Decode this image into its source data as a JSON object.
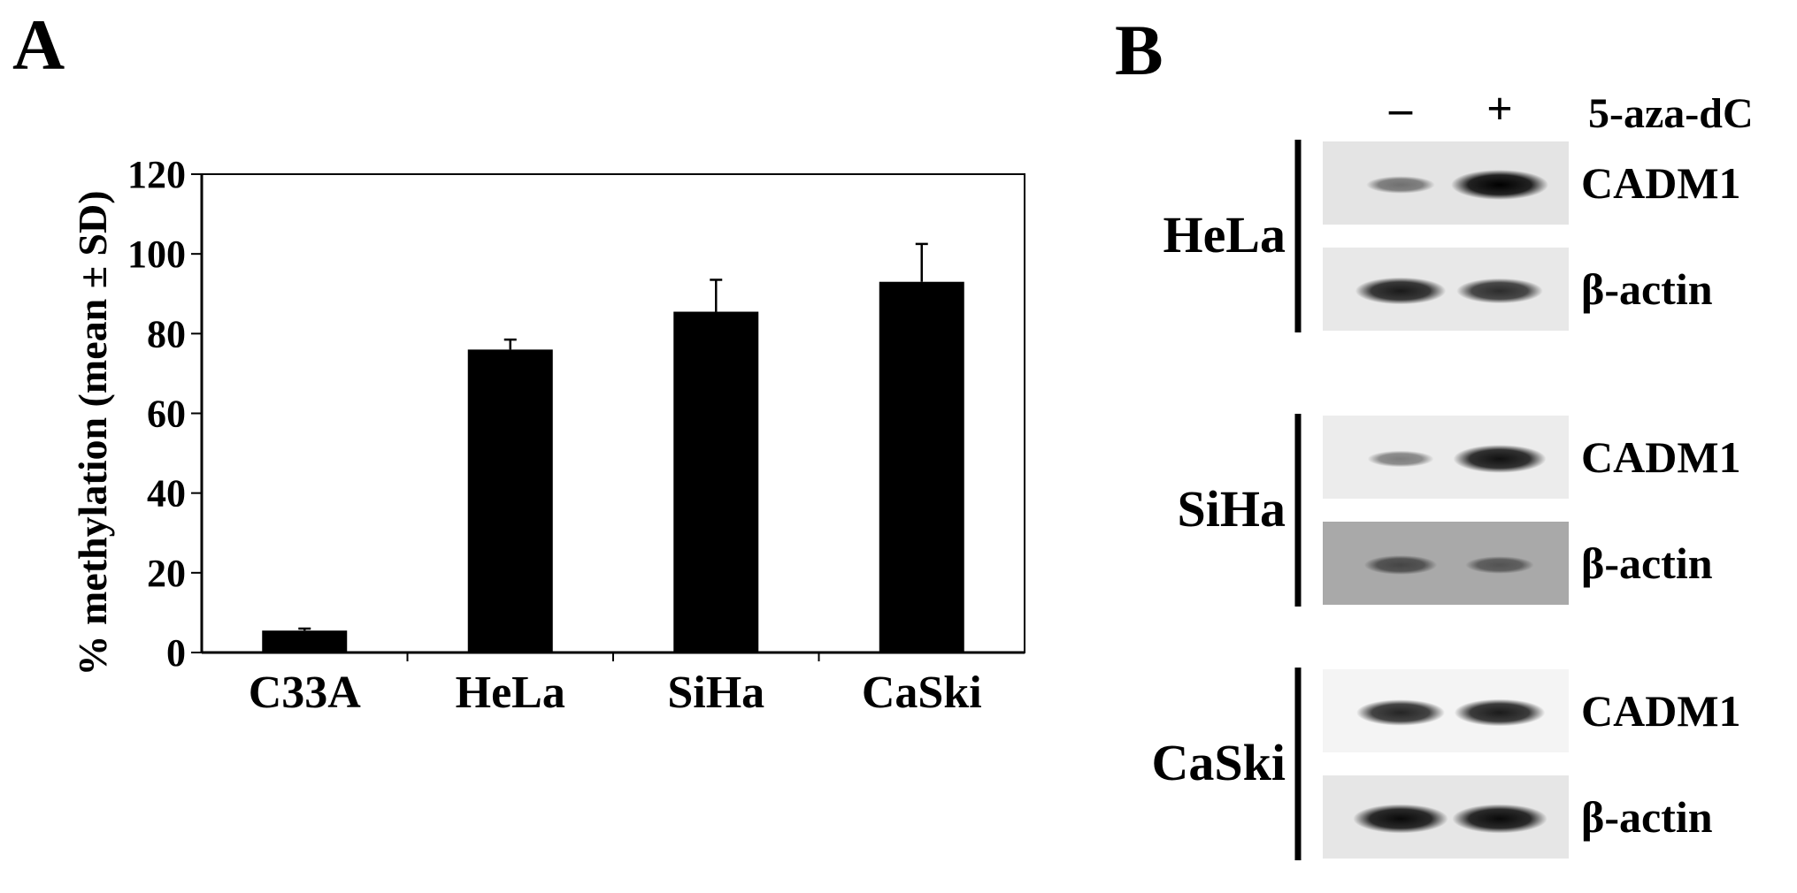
{
  "panel_a": {
    "letter": "A",
    "chart_data": {
      "type": "bar",
      "title": "",
      "xlabel": "",
      "ylabel": "% methylation (mean ± SD)",
      "categories": [
        "C33A",
        "HeLa",
        "SiHa",
        "CaSki"
      ],
      "values": [
        5.5,
        76,
        85.5,
        93
      ],
      "errors": [
        0.5,
        2.5,
        8,
        9.5
      ],
      "ylim": [
        0,
        120
      ],
      "yticks": [
        "0",
        "20",
        "40",
        "60",
        "80",
        "100",
        "120"
      ],
      "grid": false,
      "bar_color": "#000000"
    }
  },
  "panel_b": {
    "letter": "B",
    "treatment_label": "5-aza-dC",
    "lane_labels": [
      "–",
      "+"
    ],
    "groups": [
      {
        "cell_line": "HeLa",
        "rows": [
          {
            "protein": "CADM1",
            "bg": "#e4e4e4",
            "bands": [
              0.35,
              1.0
            ]
          },
          {
            "protein": "β-actin",
            "bg": "#e8e8e8",
            "bands": [
              0.85,
              0.75
            ]
          }
        ]
      },
      {
        "cell_line": "SiHa",
        "rows": [
          {
            "protein": "CADM1",
            "bg": "#ececec",
            "bands": [
              0.3,
              0.9
            ]
          },
          {
            "protein": "β-actin",
            "bg": "#a9a9a9",
            "bands": [
              0.45,
              0.35
            ]
          }
        ]
      },
      {
        "cell_line": "CaSki",
        "rows": [
          {
            "protein": "CADM1",
            "bg": "#f4f4f4",
            "bands": [
              0.8,
              0.85
            ]
          },
          {
            "protein": "β-actin",
            "bg": "#e6e6e6",
            "bands": [
              0.95,
              0.95
            ]
          }
        ]
      }
    ]
  }
}
